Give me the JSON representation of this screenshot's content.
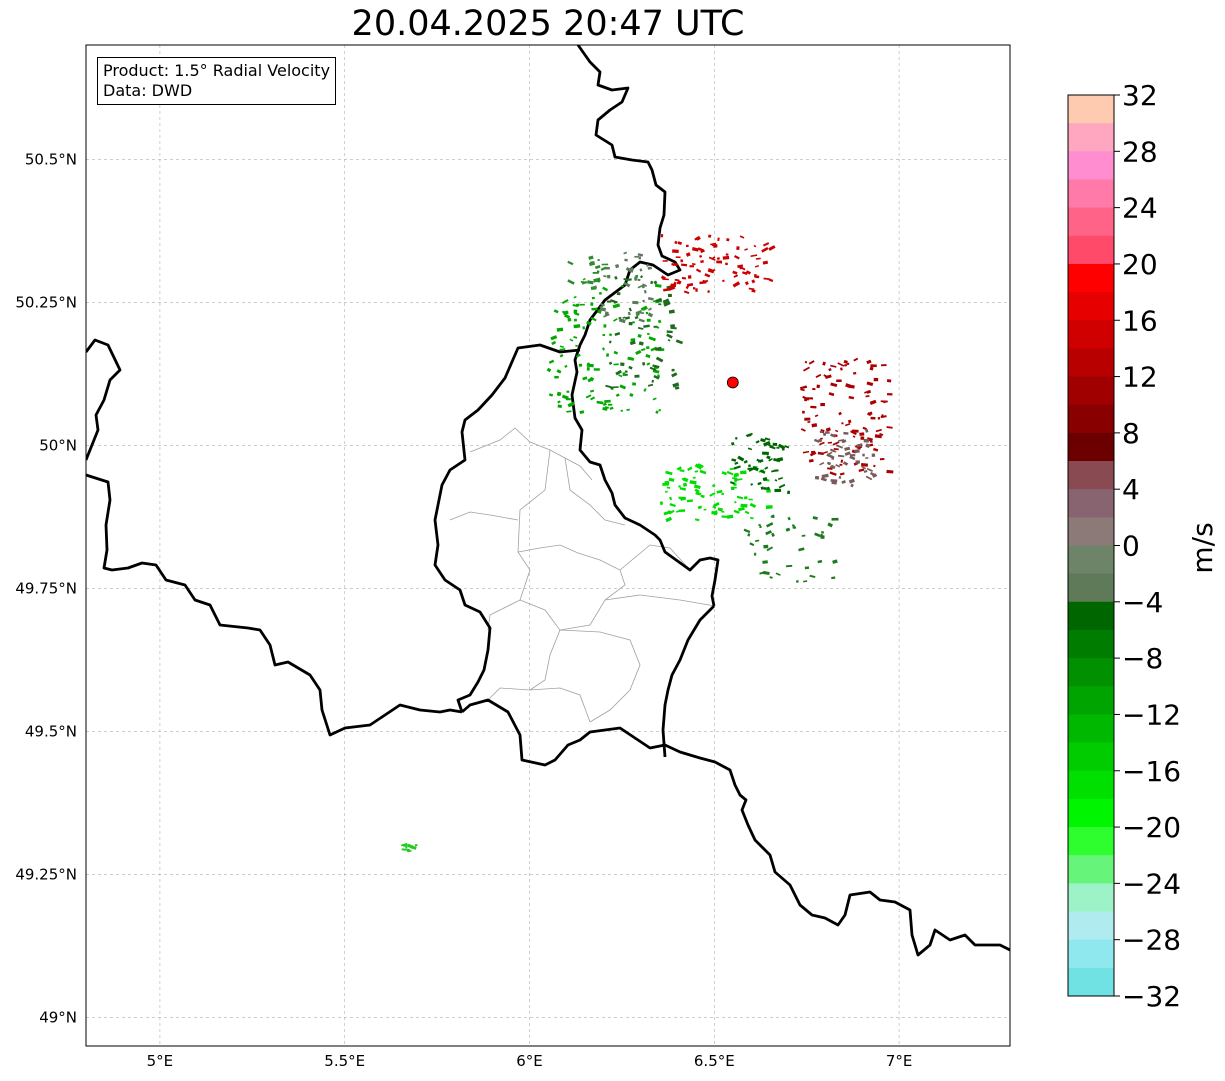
{
  "title": "20.04.2025 20:47 UTC",
  "info": {
    "product": "Product: 1.5° Radial Velocity",
    "data": "Data: DWD"
  },
  "map": {
    "lon_range": [
      4.8,
      7.3
    ],
    "lat_range": [
      48.95,
      50.7
    ],
    "x_ticks": [
      {
        "lon": 5.0,
        "label": "5°E"
      },
      {
        "lon": 5.5,
        "label": "5.5°E"
      },
      {
        "lon": 6.0,
        "label": "6°E"
      },
      {
        "lon": 6.5,
        "label": "6.5°E"
      },
      {
        "lon": 7.0,
        "label": "7°E"
      }
    ],
    "y_ticks": [
      {
        "lat": 49.0,
        "label": "49°N"
      },
      {
        "lat": 49.25,
        "label": "49.25°N"
      },
      {
        "lat": 49.5,
        "label": "49.5°N"
      },
      {
        "lat": 49.75,
        "label": "49.75°N"
      },
      {
        "lat": 50.0,
        "label": "50°N"
      },
      {
        "lat": 50.25,
        "label": "50.25°N"
      },
      {
        "lat": 50.5,
        "label": "50.5°N"
      }
    ],
    "grid": true,
    "radar_site": {
      "lon": 6.55,
      "lat": 50.11,
      "color": "#ff0000"
    },
    "echo_regions": [
      {
        "center": [
          6.2,
          50.18
        ],
        "spread": [
          0.15,
          0.12
        ],
        "count": 120,
        "color": "#00aa00"
      },
      {
        "center": [
          6.3,
          50.2
        ],
        "spread": [
          0.1,
          0.1
        ],
        "count": 60,
        "color": "#1e6b1e"
      },
      {
        "center": [
          6.25,
          50.28
        ],
        "spread": [
          0.08,
          0.06
        ],
        "count": 40,
        "color": "#5a7a5a"
      },
      {
        "center": [
          6.5,
          50.32
        ],
        "spread": [
          0.15,
          0.05
        ],
        "count": 90,
        "color": "#cc0000"
      },
      {
        "center": [
          6.85,
          50.05
        ],
        "spread": [
          0.12,
          0.1
        ],
        "count": 110,
        "color": "#aa0000"
      },
      {
        "center": [
          6.85,
          49.98
        ],
        "spread": [
          0.08,
          0.05
        ],
        "count": 50,
        "color": "#7a5a5a"
      },
      {
        "center": [
          6.5,
          49.92
        ],
        "spread": [
          0.15,
          0.05
        ],
        "count": 80,
        "color": "#00dd00"
      },
      {
        "center": [
          6.62,
          49.97
        ],
        "spread": [
          0.08,
          0.05
        ],
        "count": 50,
        "color": "#006600"
      },
      {
        "center": [
          6.7,
          49.82
        ],
        "spread": [
          0.12,
          0.06
        ],
        "count": 40,
        "color": "#1e7a1e"
      },
      {
        "center": [
          6.15,
          50.31
        ],
        "spread": [
          0.05,
          0.03
        ],
        "count": 15,
        "color": "#2e8b2e"
      },
      {
        "center": [
          5.67,
          49.3
        ],
        "spread": [
          0.02,
          0.01
        ],
        "count": 10,
        "color": "#22cc22"
      }
    ]
  },
  "colorbar": {
    "label": "m/s",
    "vmin": -32,
    "vmax": 32,
    "ticks": [
      32,
      28,
      24,
      20,
      16,
      12,
      8,
      4,
      0,
      -4,
      -8,
      -12,
      -16,
      -20,
      -24,
      -28,
      -32
    ],
    "tick_labels": [
      "32",
      "28",
      "24",
      "20",
      "16",
      "12",
      "8",
      "4",
      "0",
      "−4",
      "−8",
      "−12",
      "−16",
      "−20",
      "−24",
      "−28",
      "−32"
    ],
    "colors_top_to_bottom": [
      "#ffcbb0",
      "#ffa6c0",
      "#ff8dd0",
      "#ff7aa8",
      "#ff6388",
      "#ff4a6a",
      "#ff0000",
      "#e60000",
      "#d00000",
      "#b80000",
      "#a00000",
      "#880000",
      "#6c0000",
      "#8a4a52",
      "#876470",
      "#8c7a78",
      "#6e8468",
      "#5e7a58",
      "#006600",
      "#007c00",
      "#009000",
      "#00a400",
      "#00b800",
      "#00cc00",
      "#00e000",
      "#00f500",
      "#2efe2e",
      "#66f57a",
      "#9ef2c8",
      "#b0ecef",
      "#8fe8ee",
      "#70e2e4"
    ]
  }
}
